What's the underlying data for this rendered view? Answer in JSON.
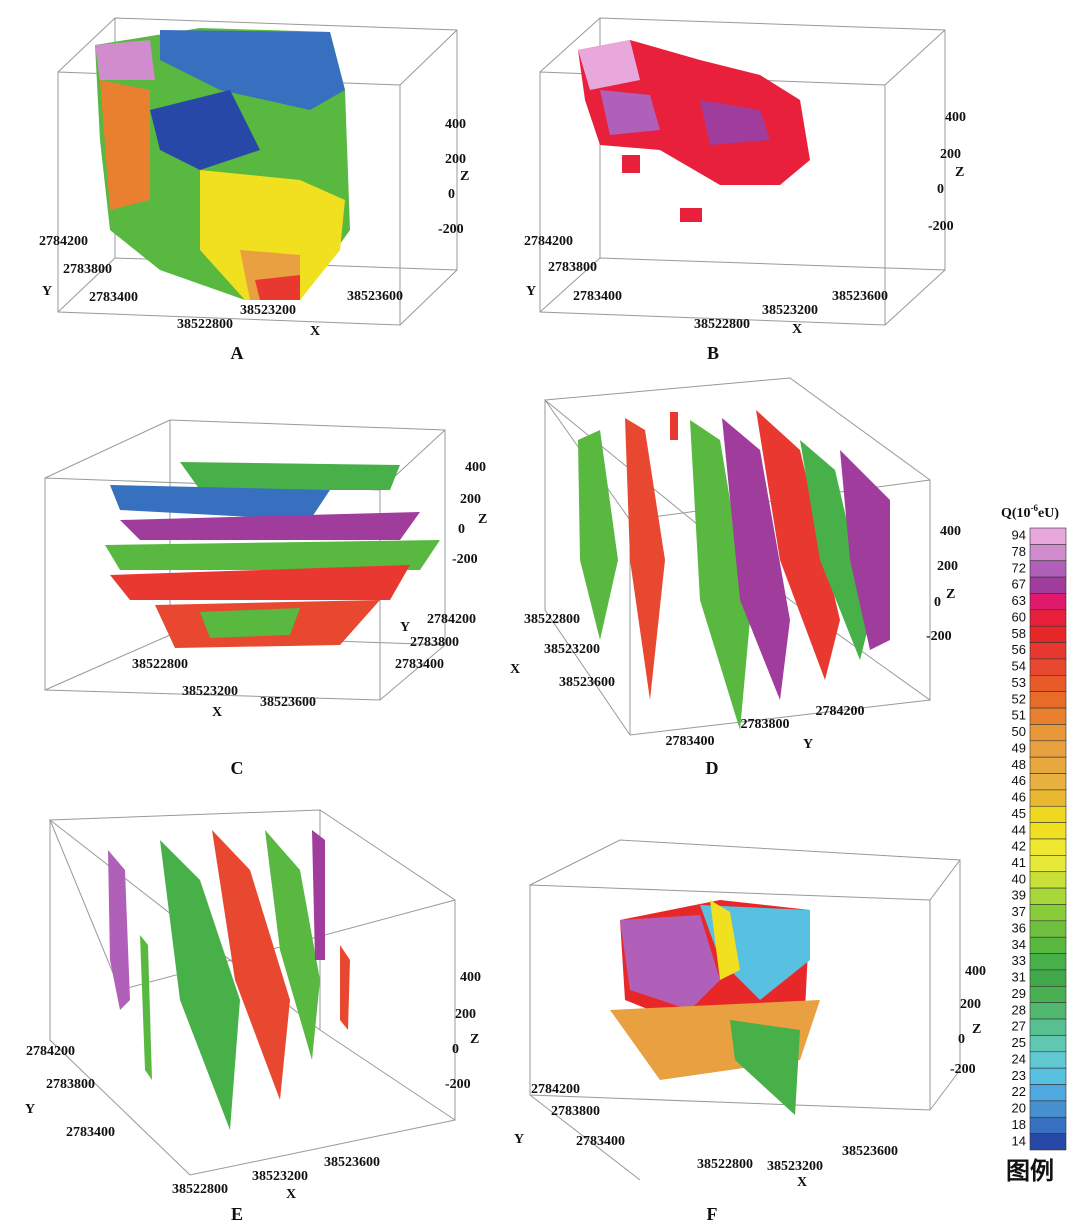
{
  "panels": [
    {
      "label": "A",
      "x_title": "X",
      "y_title": "Y",
      "z_title": "Z",
      "x_ticks": [
        38522800,
        38523200,
        38523600
      ],
      "y_ticks": [
        2784200,
        2783800,
        2783400
      ],
      "z_ticks": [
        400,
        200,
        0,
        -200
      ]
    },
    {
      "label": "B",
      "x_title": "X",
      "y_title": "Y",
      "z_title": "Z",
      "x_ticks": [
        38522800,
        38523200,
        38523600
      ],
      "y_ticks": [
        2784200,
        2783800,
        2783400
      ],
      "z_ticks": [
        400,
        200,
        0,
        -200
      ]
    },
    {
      "label": "C",
      "x_title": "X",
      "y_title": "Y",
      "z_title": "Z",
      "x_ticks": [
        38522800,
        38523200,
        38523600
      ],
      "y_ticks": [
        2784200,
        2783800,
        2783400
      ],
      "z_ticks": [
        400,
        200,
        0,
        -200
      ]
    },
    {
      "label": "D",
      "x_title": "X",
      "y_title": "Y",
      "z_title": "Z",
      "x_ticks": [
        38522800,
        38523200,
        38523600
      ],
      "y_ticks": [
        2783400,
        2783800,
        2784200
      ],
      "z_ticks": [
        400,
        200,
        0,
        -200
      ]
    },
    {
      "label": "E",
      "x_title": "X",
      "y_title": "Y",
      "z_title": "Z",
      "x_ticks": [
        38522800,
        38523200,
        38523600
      ],
      "y_ticks": [
        2784200,
        2783800,
        2783400
      ],
      "z_ticks": [
        400,
        200,
        0,
        -200
      ]
    },
    {
      "label": "F",
      "x_title": "X",
      "y_title": "Y",
      "z_title": "Z",
      "x_ticks": [
        38522800,
        38523200,
        38523600
      ],
      "y_ticks": [
        2784200,
        2783800,
        2783400
      ],
      "z_ticks": [
        400,
        200,
        0,
        -200
      ]
    }
  ],
  "legend": {
    "title_prefix": "Q(10",
    "title_sup": "-6",
    "title_suffix": "eU)",
    "caption": "图例",
    "levels": [
      94,
      78,
      72,
      67,
      63,
      60,
      58,
      56,
      54,
      53,
      52,
      51,
      50,
      49,
      48,
      46,
      46,
      45,
      44,
      42,
      41,
      40,
      39,
      37,
      36,
      34,
      33,
      31,
      29,
      28,
      27,
      25,
      24,
      23,
      22,
      20,
      18,
      14
    ],
    "colors": [
      "#e8a8dc",
      "#d08ccc",
      "#b060b8",
      "#a03c9c",
      "#e0186c",
      "#e8203c",
      "#e82828",
      "#e83830",
      "#e84830",
      "#e85a28",
      "#e86c28",
      "#e88030",
      "#e89838",
      "#e8a040",
      "#e8a840",
      "#e8b040",
      "#e8b830",
      "#f0d820",
      "#f0e020",
      "#f0e830",
      "#e8e838",
      "#c8e038",
      "#a8d838",
      "#88cc38",
      "#70c040",
      "#58b840",
      "#48b048",
      "#40a848",
      "#48b050",
      "#50b870",
      "#58c090",
      "#60c8b0",
      "#60c8d0",
      "#58c0e0",
      "#50a8e0",
      "#4890d0",
      "#3870c0",
      "#2848a8"
    ]
  }
}
